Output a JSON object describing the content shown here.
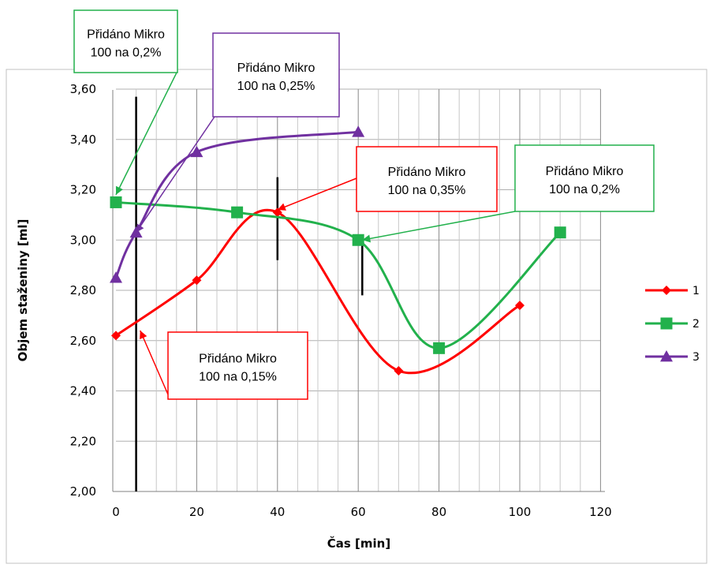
{
  "chart_data": {
    "type": "line",
    "xlabel": "Čas [min]",
    "ylabel": "Objem staženiny [ml]",
    "xlim": [
      0,
      120
    ],
    "ylim": [
      2.0,
      3.6
    ],
    "x_ticks": [
      "0",
      "20",
      "40",
      "60",
      "80",
      "100",
      "120"
    ],
    "y_ticks": [
      "2,00",
      "2,20",
      "2,40",
      "2,60",
      "2,80",
      "3,00",
      "3,20",
      "3,40",
      "3,60"
    ],
    "grid": true,
    "legend_position": "right",
    "series": [
      {
        "name": "1",
        "color": "#ff0000",
        "marker": "diamond",
        "x": [
          0,
          20,
          40,
          70,
          100
        ],
        "y": [
          2.62,
          2.84,
          3.11,
          2.48,
          2.74
        ]
      },
      {
        "name": "2",
        "color": "#22b14c",
        "marker": "square",
        "x": [
          0,
          30,
          60,
          80,
          110
        ],
        "y": [
          3.15,
          3.11,
          3.0,
          2.57,
          3.03
        ]
      },
      {
        "name": "3",
        "color": "#7030a0",
        "marker": "triangle",
        "x": [
          0,
          5,
          20,
          60
        ],
        "y": [
          2.85,
          3.03,
          3.35,
          3.43
        ]
      }
    ],
    "vertical_markers": [
      {
        "x": 5,
        "y_from": 2.0,
        "y_to": 3.57
      },
      {
        "x": 40,
        "y_from": 2.92,
        "y_to": 3.25
      },
      {
        "x": 61,
        "y_from": 2.78,
        "y_to": 3.01
      }
    ],
    "annotations": [
      {
        "line1": "Přidáno Mikro",
        "line2": "100 na 0,2%",
        "color": "#22b14c",
        "target_x": 0,
        "target_y": 3.18
      },
      {
        "line1": "Přidáno Mikro",
        "line2": "100 na 0,25%",
        "color": "#7030a0",
        "target_x": 5,
        "target_y": 3.03
      },
      {
        "line1": "Přidáno Mikro",
        "line2": "100 na 0,35%",
        "color": "#ff0000",
        "target_x": 40,
        "target_y": 3.12
      },
      {
        "line1": "Přidáno Mikro",
        "line2": "100 na 0,2%",
        "color": "#22b14c",
        "target_x": 61,
        "target_y": 3.0
      },
      {
        "line1": "Přidáno Mikro",
        "line2": "100 na 0,15%",
        "color": "#ff0000",
        "target_x": 6,
        "target_y": 2.64
      }
    ]
  }
}
